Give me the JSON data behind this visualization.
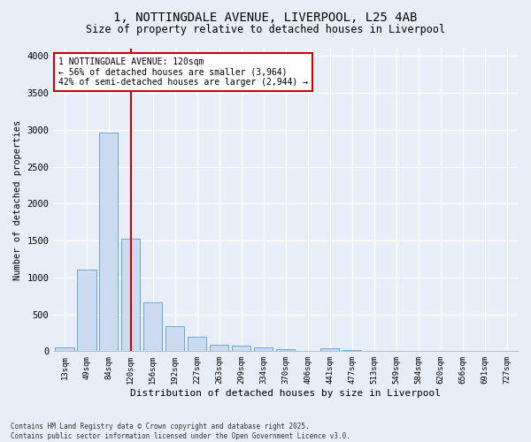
{
  "title_line1": "1, NOTTINGDALE AVENUE, LIVERPOOL, L25 4AB",
  "title_line2": "Size of property relative to detached houses in Liverpool",
  "xlabel": "Distribution of detached houses by size in Liverpool",
  "ylabel": "Number of detached properties",
  "categories": [
    "13sqm",
    "49sqm",
    "84sqm",
    "120sqm",
    "156sqm",
    "192sqm",
    "227sqm",
    "263sqm",
    "299sqm",
    "334sqm",
    "370sqm",
    "406sqm",
    "441sqm",
    "477sqm",
    "513sqm",
    "549sqm",
    "584sqm",
    "620sqm",
    "656sqm",
    "691sqm",
    "727sqm"
  ],
  "values": [
    55,
    1110,
    2960,
    1530,
    660,
    340,
    195,
    90,
    80,
    50,
    22,
    8,
    35,
    18,
    0,
    0,
    0,
    0,
    0,
    0,
    0
  ],
  "bar_color": "#ccdcf0",
  "bar_edge_color": "#5b9bd5",
  "vline_x": 3,
  "vline_color": "#cc0000",
  "annotation_text": "1 NOTTINGDALE AVENUE: 120sqm\n← 56% of detached houses are smaller (3,964)\n42% of semi-detached houses are larger (2,944) →",
  "annotation_box_color": "#ffffff",
  "annotation_box_edge_color": "#cc0000",
  "ylim": [
    0,
    4100
  ],
  "yticks": [
    0,
    500,
    1000,
    1500,
    2000,
    2500,
    3000,
    3500,
    4000
  ],
  "background_color": "#e8eef8",
  "grid_color": "#ffffff",
  "footnote": "Contains HM Land Registry data © Crown copyright and database right 2025.\nContains public sector information licensed under the Open Government Licence v3.0."
}
